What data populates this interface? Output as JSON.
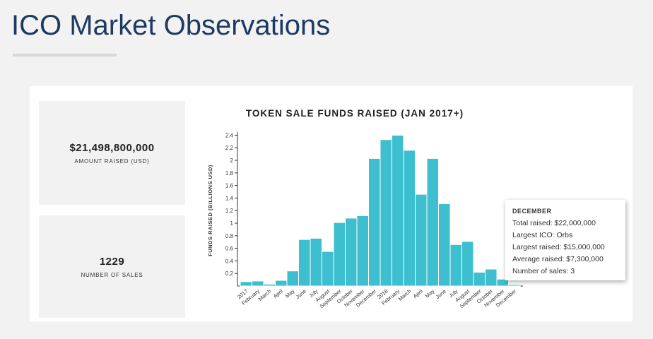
{
  "header": {
    "title": "ICO Market Observations"
  },
  "stats": [
    {
      "value": "$21,498,800,000",
      "label": "AMOUNT RAISED (USD)"
    },
    {
      "value": "1229",
      "label": "NUMBER OF SALES"
    }
  ],
  "chart_data": {
    "type": "bar",
    "title": "TOKEN SALE FUNDS RAISED (JAN 2017+)",
    "y_label": "FUNDS RAISED (BILLIONS USD)",
    "categories": [
      "2017",
      "February",
      "March",
      "April",
      "May",
      "June",
      "July",
      "August",
      "September",
      "October",
      "November",
      "December",
      "2018",
      "February",
      "March",
      "April",
      "May",
      "June",
      "July",
      "August",
      "September",
      "October",
      "November",
      "December"
    ],
    "values": [
      0.07,
      0.08,
      0.03,
      0.09,
      0.24,
      0.74,
      0.76,
      0.55,
      1.01,
      1.08,
      1.12,
      2.03,
      2.33,
      2.4,
      2.16,
      1.46,
      2.03,
      1.31,
      0.66,
      0.71,
      0.22,
      0.27,
      0.11,
      0.022
    ],
    "color": "#3dbfcf",
    "ylim": [
      0,
      2.45
    ],
    "yticks": [
      0.2,
      0.4,
      0.6,
      0.8,
      1,
      1.2,
      1.4,
      1.6,
      1.8,
      2,
      2.2,
      2.4
    ]
  },
  "tooltip": {
    "title": "DECEMBER",
    "lines": [
      "Total raised: $22,000,000",
      "Largest ICO: Orbs",
      "Largest raised: $15,000,000",
      "Average raised: $7,300,000",
      "Number of sales: 3"
    ]
  }
}
